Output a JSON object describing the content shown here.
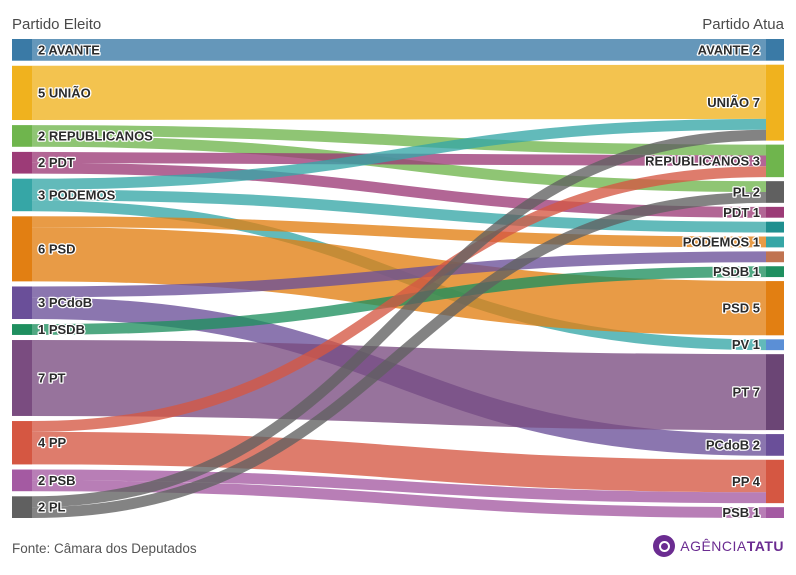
{
  "header": {
    "left": "Partido Eleito",
    "right": "Partido Atua"
  },
  "footer": {
    "source": "Fonte: Câmara dos Deputados",
    "brand_a": "AGÊNCIA",
    "brand_b": "TATU"
  },
  "chart_data": {
    "type": "sankey",
    "left_title": "Partido Eleito",
    "right_title": "Partido Atua",
    "left_nodes": [
      {
        "id": "AVANTE",
        "label": "2 AVANTE",
        "value": 2,
        "color": "#3a7aa6"
      },
      {
        "id": "UNIAO",
        "label": "5 UNIÃO",
        "value": 5,
        "color": "#f0b21e"
      },
      {
        "id": "REPUBLICANOS",
        "label": "2 REPUBLICANOS",
        "value": 2,
        "color": "#6fb54d"
      },
      {
        "id": "PDT",
        "label": "2 PDT",
        "value": 2,
        "color": "#9c3b77"
      },
      {
        "id": "PODEMOS",
        "label": "3 PODEMOS",
        "value": 3,
        "color": "#36a6a6"
      },
      {
        "id": "PSD",
        "label": "6 PSD",
        "value": 6,
        "color": "#e27f12"
      },
      {
        "id": "PCdoB",
        "label": "3 PCdoB",
        "value": 3,
        "color": "#6a4f99"
      },
      {
        "id": "PSDB",
        "label": "1 PSDB",
        "value": 1,
        "color": "#1f8f5f"
      },
      {
        "id": "PT",
        "label": "7 PT",
        "value": 7,
        "color": "#7a4c80"
      },
      {
        "id": "PP",
        "label": "4 PP",
        "value": 4,
        "color": "#d55742"
      },
      {
        "id": "PSB",
        "label": "2 PSB",
        "value": 2,
        "color": "#a45aa2"
      },
      {
        "id": "PL",
        "label": "2 PL",
        "value": 2,
        "color": "#606060"
      }
    ],
    "right_nodes": [
      {
        "id": "AVANTE",
        "label": "AVANTE 2",
        "value": 2,
        "color": "#3a7aa6"
      },
      {
        "id": "UNIAO",
        "label": "UNIÃO 7",
        "value": 7,
        "color": "#f0b21e"
      },
      {
        "id": "REPUBLICANOS",
        "label": "REPUBLICANOS 3",
        "value": 3,
        "color": "#6fb54d"
      },
      {
        "id": "PL",
        "label": "PL 2",
        "value": 2,
        "color": "#606060"
      },
      {
        "id": "PDT",
        "label": "PDT 1",
        "value": 1,
        "color": "#9c3b77"
      },
      {
        "id": "X",
        "label": "",
        "value": 1,
        "color": "#1f8f8f"
      },
      {
        "id": "PODEMOS",
        "label": "PODEMOS 1",
        "value": 1,
        "color": "#36a6a6"
      },
      {
        "id": "Y",
        "label": "",
        "value": 1,
        "color": "#c07350"
      },
      {
        "id": "PSDB",
        "label": "PSDB 1",
        "value": 1,
        "color": "#1f8f5f"
      },
      {
        "id": "PSD",
        "label": "PSD 5",
        "value": 5,
        "color": "#e27f12"
      },
      {
        "id": "PV",
        "label": "PV 1",
        "value": 1,
        "color": "#5b8fd6"
      },
      {
        "id": "PT",
        "label": "PT 7",
        "value": 7,
        "color": "#6b4575"
      },
      {
        "id": "PCdoB",
        "label": "PCdoB 2",
        "value": 2,
        "color": "#6a4f99"
      },
      {
        "id": "PP",
        "label": "PP 4",
        "value": 4,
        "color": "#d55742"
      },
      {
        "id": "PSB",
        "label": "PSB 1",
        "value": 1,
        "color": "#a45aa2"
      }
    ],
    "links": [
      {
        "source": "AVANTE",
        "target": "AVANTE",
        "value": 2
      },
      {
        "source": "UNIAO",
        "target": "UNIAO",
        "value": 5
      },
      {
        "source": "REPUBLICANOS",
        "target": "REPUBLICANOS",
        "value": 1
      },
      {
        "source": "REPUBLICANOS",
        "target": "PL",
        "value": 1
      },
      {
        "source": "PDT",
        "target": "REPUBLICANOS",
        "value": 1
      },
      {
        "source": "PDT",
        "target": "PDT",
        "value": 1
      },
      {
        "source": "PODEMOS",
        "target": "UNIAO",
        "value": 1
      },
      {
        "source": "PODEMOS",
        "target": "X",
        "value": 1
      },
      {
        "source": "PODEMOS",
        "target": "PV",
        "value": 1
      },
      {
        "source": "PSD",
        "target": "PODEMOS",
        "value": 1
      },
      {
        "source": "PSD",
        "target": "PSD",
        "value": 5
      },
      {
        "source": "PCdoB",
        "target": "Y",
        "value": 1
      },
      {
        "source": "PCdoB",
        "target": "PCdoB",
        "value": 2
      },
      {
        "source": "PSDB",
        "target": "PSDB",
        "value": 1
      },
      {
        "source": "PT",
        "target": "PT",
        "value": 7
      },
      {
        "source": "PP",
        "target": "REPUBLICANOS",
        "value": 1
      },
      {
        "source": "PP",
        "target": "PP",
        "value": 3
      },
      {
        "source": "PSB",
        "target": "PP",
        "value": 1
      },
      {
        "source": "PSB",
        "target": "PSB",
        "value": 1
      },
      {
        "source": "PL",
        "target": "UNIAO",
        "value": 1
      },
      {
        "source": "PL",
        "target": "PL",
        "value": 1
      }
    ]
  }
}
